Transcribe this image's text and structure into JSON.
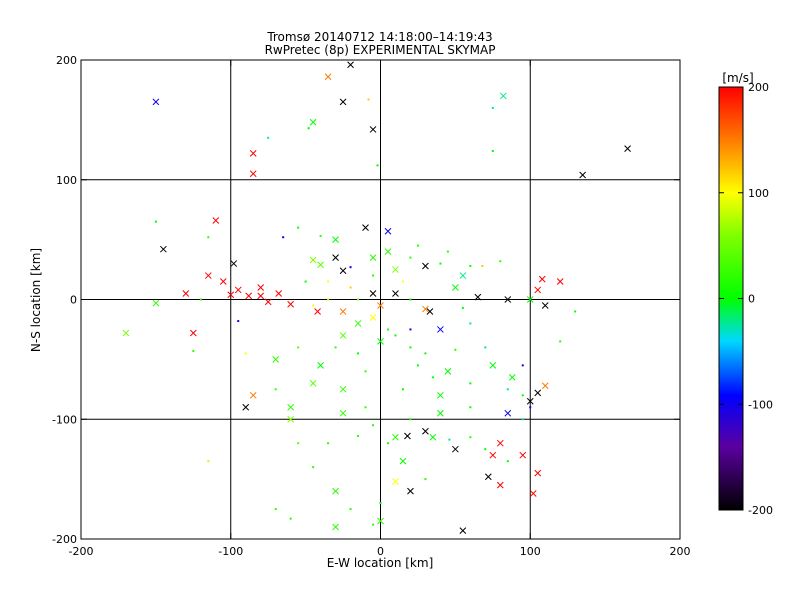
{
  "chart_data": {
    "type": "scatter",
    "title": "Tromsø 20140712 14:18:00–14:19:43",
    "subtitle": "RwPretec (8p) EXPERIMENTAL SKYMAP",
    "xlabel": "E-W location [km]",
    "ylabel": "N-S location [km]",
    "xlim": [
      -200,
      200
    ],
    "ylim": [
      -200,
      200
    ],
    "x_ticks": [
      "-200",
      "-100",
      "0",
      "100",
      "200"
    ],
    "y_ticks": [
      "-200",
      "-100",
      "0",
      "100",
      "200"
    ],
    "grid": true,
    "colorbar": {
      "label": "[m/s]",
      "min": -200,
      "max": 200,
      "ticks": [
        "-200",
        "-100",
        "0",
        "100",
        "200"
      ]
    },
    "marker_types": [
      "x (large cross)",
      "+ (small dot)"
    ],
    "marker_colors": {
      "black": "#000000",
      "blue": "#2040ff",
      "cyan": "#22dddd",
      "green": "#22dd22",
      "yellow": "#eeee00",
      "orange": "#ff9900",
      "red": "#ff2222"
    },
    "points_x": [
      [
        -150,
        165,
        -100
      ],
      [
        -20,
        196,
        -200
      ],
      [
        -25,
        165,
        -200
      ],
      [
        -5,
        142,
        -200
      ],
      [
        -85,
        122,
        200
      ],
      [
        -75,
        135,
        -20
      ],
      [
        -85,
        105,
        200
      ],
      [
        -2,
        112,
        0
      ],
      [
        75,
        160,
        -20
      ],
      [
        82,
        170,
        -20
      ],
      [
        75,
        124,
        0
      ],
      [
        165,
        126,
        -200
      ],
      [
        135,
        104,
        -200
      ],
      [
        -48,
        143,
        0
      ],
      [
        -8,
        167,
        120
      ],
      [
        -35,
        186,
        150
      ],
      [
        -150,
        65,
        0
      ],
      [
        -110,
        66,
        200
      ],
      [
        -145,
        42,
        -200
      ],
      [
        -98,
        30,
        -200
      ],
      [
        -10,
        60,
        -200
      ],
      [
        5,
        57,
        -100
      ],
      [
        -65,
        52,
        -100
      ],
      [
        -40,
        53,
        20
      ],
      [
        -45,
        33,
        60
      ],
      [
        -25,
        24,
        -200
      ],
      [
        68,
        28,
        120
      ],
      [
        -40,
        29,
        40
      ],
      [
        30,
        28,
        -200
      ],
      [
        -130,
        5,
        200
      ],
      [
        -150,
        -3,
        20
      ],
      [
        -120,
        0,
        20
      ],
      [
        -100,
        4,
        200
      ],
      [
        -88,
        3,
        200
      ],
      [
        -80,
        3,
        200
      ],
      [
        -60,
        -4,
        200
      ],
      [
        -42,
        -10,
        200
      ],
      [
        -25,
        -10,
        150
      ],
      [
        -5,
        5,
        -200
      ],
      [
        10,
        5,
        -200
      ],
      [
        20,
        0,
        0
      ],
      [
        30,
        -8,
        150
      ],
      [
        33,
        -10,
        -200
      ],
      [
        55,
        -7,
        0
      ],
      [
        65,
        2,
        -200
      ],
      [
        85,
        0,
        -200
      ],
      [
        108,
        17,
        200
      ],
      [
        105,
        8,
        200
      ],
      [
        110,
        -5,
        -200
      ],
      [
        -125,
        -28,
        200
      ],
      [
        -95,
        -18,
        -100
      ],
      [
        -170,
        -28,
        60
      ],
      [
        -125,
        -43,
        20
      ],
      [
        -90,
        -45,
        100
      ],
      [
        -70,
        -50,
        20
      ],
      [
        -55,
        -40,
        40
      ],
      [
        -30,
        -40,
        20
      ],
      [
        -45,
        -70,
        40
      ],
      [
        -70,
        -75,
        20
      ],
      [
        20,
        -25,
        -100
      ],
      [
        40,
        -25,
        -100
      ],
      [
        50,
        -42,
        20
      ],
      [
        95,
        -55,
        -100
      ],
      [
        88,
        -65,
        0
      ],
      [
        110,
        -72,
        150
      ],
      [
        120,
        -35,
        20
      ],
      [
        105,
        -78,
        -200
      ],
      [
        100,
        -85,
        -200
      ],
      [
        95,
        -80,
        0
      ],
      [
        85,
        -95,
        -100
      ],
      [
        100,
        -90,
        -100
      ],
      [
        95,
        -100,
        -20
      ],
      [
        40,
        -80,
        0
      ],
      [
        20,
        -100,
        0
      ],
      [
        -10,
        -90,
        20
      ],
      [
        -60,
        -90,
        20
      ],
      [
        -85,
        -80,
        150
      ],
      [
        -60,
        -100,
        60
      ],
      [
        10,
        -115,
        20
      ],
      [
        -15,
        -114,
        20
      ],
      [
        18,
        -114,
        -200
      ],
      [
        35,
        -115,
        0
      ],
      [
        30,
        -110,
        -200
      ],
      [
        46,
        -117,
        -20
      ],
      [
        50,
        -125,
        -200
      ],
      [
        70,
        -125,
        0
      ],
      [
        60,
        -115,
        20
      ],
      [
        75,
        -130,
        200
      ],
      [
        80,
        -120,
        200
      ],
      [
        85,
        -135,
        0
      ],
      [
        80,
        -155,
        200
      ],
      [
        95,
        -130,
        200
      ],
      [
        105,
        -145,
        200
      ],
      [
        102,
        -162,
        200
      ],
      [
        72,
        -148,
        -200
      ],
      [
        20,
        -160,
        -200
      ],
      [
        10,
        -152,
        100
      ],
      [
        55,
        -193,
        -200
      ],
      [
        -5,
        -188,
        20
      ],
      [
        0,
        -185,
        20
      ],
      [
        -70,
        -175,
        20
      ],
      [
        -115,
        -135,
        80
      ],
      [
        -60,
        -100,
        60
      ],
      [
        -55,
        -120,
        40
      ],
      [
        -60,
        -183,
        20
      ],
      [
        -30,
        -190,
        20
      ],
      [
        -90,
        -90,
        -200
      ],
      [
        -115,
        52,
        20
      ],
      [
        -45,
        148,
        0
      ],
      [
        -30,
        35,
        -200
      ],
      [
        -20,
        27,
        -100
      ],
      [
        -5,
        35,
        20
      ],
      [
        20,
        35,
        20
      ],
      [
        40,
        30,
        0
      ],
      [
        55,
        20,
        -20
      ],
      [
        60,
        28,
        0
      ],
      [
        80,
        32,
        20
      ],
      [
        100,
        0,
        0
      ],
      [
        120,
        15,
        200
      ],
      [
        130,
        -10,
        0
      ],
      [
        -30,
        50,
        0
      ],
      [
        -55,
        60,
        0
      ],
      [
        -50,
        15,
        0
      ],
      [
        -15,
        -20,
        20
      ],
      [
        10,
        -30,
        0
      ],
      [
        30,
        -45,
        0
      ],
      [
        45,
        -60,
        0
      ],
      [
        60,
        -70,
        0
      ],
      [
        -10,
        -60,
        20
      ],
      [
        -40,
        -55,
        0
      ],
      [
        0,
        -5,
        150
      ],
      [
        15,
        15,
        100
      ],
      [
        -5,
        -15,
        100
      ],
      [
        5,
        -25,
        20
      ],
      [
        25,
        -55,
        0
      ],
      [
        -25,
        -75,
        20
      ],
      [
        15,
        -75,
        0
      ],
      [
        35,
        -65,
        0
      ],
      [
        -80,
        10,
        200
      ],
      [
        -35,
        0,
        80
      ],
      [
        -115,
        20,
        200
      ],
      [
        -105,
        15,
        200
      ],
      [
        -95,
        8,
        200
      ],
      [
        -75,
        -2,
        200
      ],
      [
        -68,
        5,
        200
      ],
      [
        -45,
        -5,
        100
      ],
      [
        -20,
        10,
        120
      ],
      [
        10,
        25,
        60
      ],
      [
        -35,
        15,
        100
      ],
      [
        -15,
        -45,
        0
      ],
      [
        0,
        -35,
        0
      ],
      [
        20,
        -40,
        0
      ],
      [
        -5,
        20,
        20
      ],
      [
        5,
        40,
        20
      ],
      [
        25,
        45,
        20
      ],
      [
        45,
        40,
        20
      ],
      [
        50,
        10,
        0
      ],
      [
        60,
        -20,
        -20
      ],
      [
        70,
        -40,
        -20
      ],
      [
        75,
        -55,
        0
      ],
      [
        85,
        -75,
        -20
      ],
      [
        60,
        -90,
        0
      ],
      [
        40,
        -95,
        0
      ],
      [
        5,
        -120,
        20
      ],
      [
        -5,
        -105,
        20
      ],
      [
        -25,
        -95,
        20
      ],
      [
        -35,
        -120,
        20
      ],
      [
        -45,
        -140,
        20
      ],
      [
        -30,
        -160,
        20
      ],
      [
        -20,
        -175,
        20
      ],
      [
        0,
        -170,
        0
      ],
      [
        15,
        -135,
        0
      ],
      [
        30,
        -150,
        20
      ],
      [
        -15,
        0,
        60
      ],
      [
        -25,
        -30,
        40
      ]
    ]
  }
}
